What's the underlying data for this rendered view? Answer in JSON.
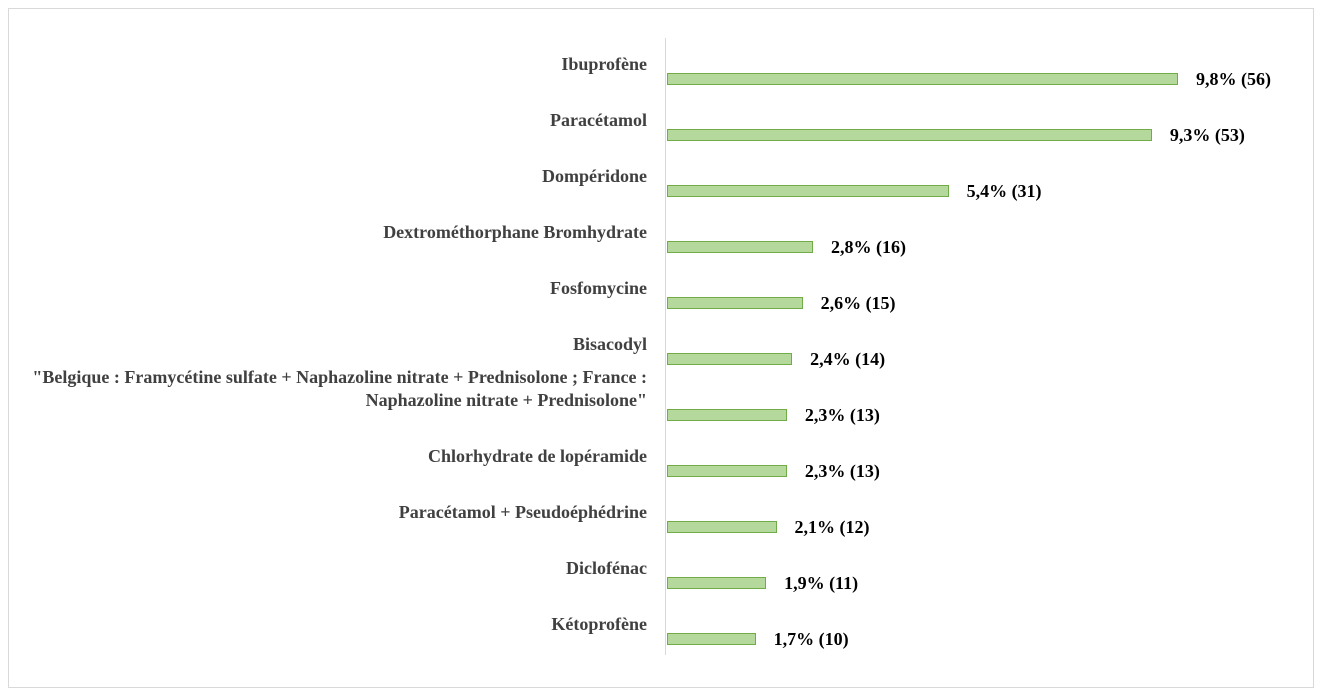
{
  "chart_data": {
    "type": "bar",
    "orientation": "horizontal",
    "categories": [
      "Ibuprofène",
      "Paracétamol",
      "Dompéridone",
      "Dextrométhorphane Bromhydrate",
      "Fosfomycine",
      "Bisacodyl",
      "\"Belgique : Framycétine sulfate + Naphazoline nitrate + Prednisolone ; France : Naphazoline nitrate + Prednisolone\"",
      "Chlorhydrate de lopéramide",
      "Paracétamol + Pseudoéphédrine",
      "Diclofénac",
      "Kétoprofène"
    ],
    "values": [
      9.8,
      9.3,
      5.4,
      2.8,
      2.6,
      2.4,
      2.3,
      2.3,
      2.1,
      1.9,
      1.7
    ],
    "value_labels": [
      "9,8% (56)",
      "9,3% (53)",
      "5,4% (31)",
      "2,8% (16)",
      "2,6% (15)",
      "2,4% (14)",
      "2,3% (13)",
      "2,3% (13)",
      "2,1% (12)",
      "1,9% (11)",
      "1,7% (10)"
    ],
    "color": "#b5d99c"
  }
}
